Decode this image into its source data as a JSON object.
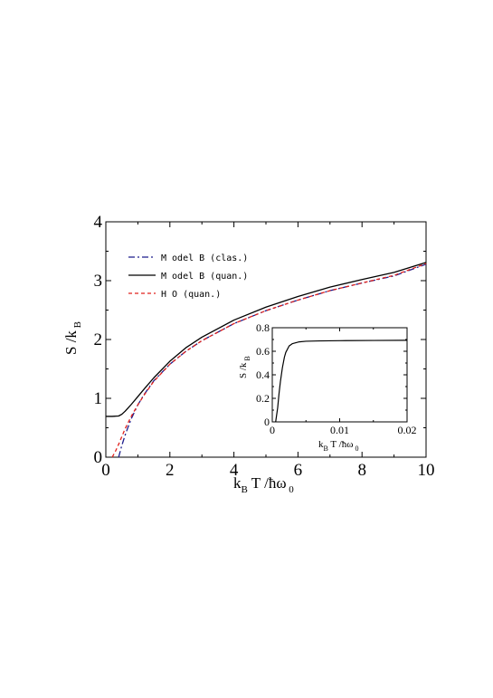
{
  "chart_data": [
    {
      "type": "line",
      "xlabel": "k_B T / ħω_0",
      "ylabel": "S / k_B",
      "xlim": [
        0,
        10
      ],
      "ylim": [
        0,
        4
      ],
      "x_ticks": [
        "0",
        "2",
        "4",
        "6",
        "8",
        "10"
      ],
      "y_ticks": [
        "0",
        "1",
        "2",
        "3",
        "4"
      ],
      "grid": false,
      "legend_position": "top-left",
      "series": [
        {
          "name": "M odel B (clas.)",
          "color": "#1c1c8c",
          "dash": "dash-dot",
          "x": [
            0.4,
            0.5,
            0.6,
            0.7,
            0.8,
            1.0,
            1.2,
            1.5,
            2.0,
            2.5,
            3.0,
            4.0,
            5.0,
            6.0,
            7.0,
            8.0,
            9.0,
            10.0
          ],
          "y": [
            0.0,
            0.2,
            0.37,
            0.52,
            0.66,
            0.89,
            1.07,
            1.3,
            1.58,
            1.8,
            1.98,
            2.27,
            2.49,
            2.67,
            2.83,
            2.96,
            3.08,
            3.28
          ]
        },
        {
          "name": "M odel B (quan.)",
          "color": "#000000",
          "dash": "solid",
          "x": [
            0.0,
            0.2,
            0.4,
            0.5,
            0.6,
            0.7,
            0.8,
            1.0,
            1.2,
            1.5,
            2.0,
            2.5,
            3.0,
            4.0,
            5.0,
            6.0,
            7.0,
            8.0,
            9.0,
            10.0
          ],
          "y": [
            0.693,
            0.693,
            0.7,
            0.73,
            0.78,
            0.84,
            0.9,
            1.03,
            1.16,
            1.35,
            1.63,
            1.86,
            2.04,
            2.33,
            2.55,
            2.73,
            2.89,
            3.02,
            3.14,
            3.31
          ]
        },
        {
          "name": "H O (quan.)",
          "color": "#e0201c",
          "dash": "dashed",
          "x": [
            0.2,
            0.3,
            0.4,
            0.5,
            0.6,
            0.8,
            1.0,
            1.2,
            1.5,
            2.0,
            2.5,
            3.0,
            4.0,
            5.0,
            6.0,
            7.0,
            8.0,
            9.0,
            10.0
          ],
          "y": [
            0.0,
            0.1,
            0.22,
            0.35,
            0.48,
            0.7,
            0.89,
            1.06,
            1.29,
            1.58,
            1.8,
            1.98,
            2.27,
            2.49,
            2.67,
            2.83,
            2.96,
            3.09,
            3.29
          ]
        }
      ]
    },
    {
      "type": "line",
      "xlabel": "k_B T / ħω_0",
      "ylabel": "S / k_B",
      "xlim": [
        0,
        0.02
      ],
      "ylim": [
        0,
        0.8
      ],
      "x_ticks": [
        "0",
        "0.01",
        "0.02"
      ],
      "y_ticks": [
        "0",
        "0.2",
        "0.4",
        "0.6",
        "0.8"
      ],
      "grid": false,
      "position": "inset, lower-right of main plot",
      "series": [
        {
          "color": "#000000",
          "dash": "solid",
          "x": [
            0.0005,
            0.0008,
            0.001,
            0.0012,
            0.0015,
            0.0018,
            0.002,
            0.0025,
            0.003,
            0.004,
            0.005,
            0.007,
            0.01,
            0.015,
            0.02
          ],
          "y": [
            0.0,
            0.12,
            0.24,
            0.34,
            0.46,
            0.55,
            0.59,
            0.645,
            0.665,
            0.68,
            0.685,
            0.688,
            0.69,
            0.692,
            0.693
          ]
        }
      ]
    }
  ]
}
